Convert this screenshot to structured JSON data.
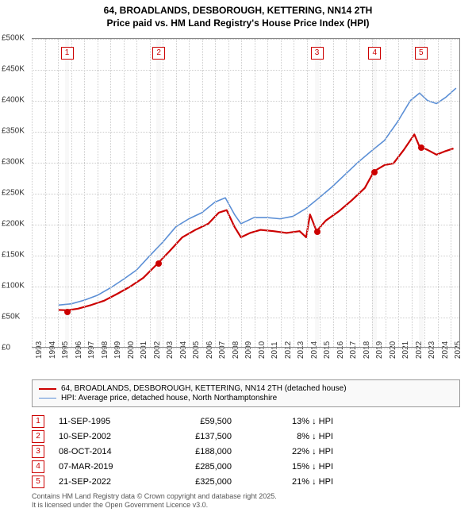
{
  "title_line1": "64, BROADLANDS, DESBOROUGH, KETTERING, NN14 2TH",
  "title_line2": "Price paid vs. HM Land Registry's House Price Index (HPI)",
  "chart": {
    "type": "line",
    "background_color": "#ffffff",
    "grid_color": "#cccccc",
    "xlim": [
      1993,
      2025.7
    ],
    "ylim": [
      0,
      500000
    ],
    "ytick_step": 50000,
    "yticks": [
      "£0",
      "£50K",
      "£100K",
      "£150K",
      "£200K",
      "£250K",
      "£300K",
      "£350K",
      "£400K",
      "£450K",
      "£500K"
    ],
    "xticks": [
      1993,
      1994,
      1995,
      1996,
      1997,
      1998,
      1999,
      2000,
      2001,
      2002,
      2003,
      2004,
      2005,
      2006,
      2007,
      2008,
      2009,
      2010,
      2011,
      2012,
      2013,
      2014,
      2015,
      2016,
      2017,
      2018,
      2019,
      2020,
      2021,
      2022,
      2023,
      2024,
      2025
    ],
    "series": [
      {
        "name": "paid",
        "label": "64, BROADLANDS, DESBOROUGH, KETTERING, NN14 2TH (detached house)",
        "color": "#cc0000",
        "line_width": 2.2,
        "data": [
          [
            1995.0,
            60000
          ],
          [
            1995.7,
            59500
          ],
          [
            1996.5,
            62000
          ],
          [
            1997.5,
            68000
          ],
          [
            1998.5,
            75000
          ],
          [
            1999.5,
            86000
          ],
          [
            2000.5,
            98000
          ],
          [
            2001.5,
            112000
          ],
          [
            2002.7,
            137500
          ],
          [
            2003.5,
            155000
          ],
          [
            2004.5,
            178000
          ],
          [
            2005.5,
            190000
          ],
          [
            2006.5,
            200000
          ],
          [
            2007.3,
            218000
          ],
          [
            2007.9,
            222000
          ],
          [
            2008.5,
            195000
          ],
          [
            2009.0,
            178000
          ],
          [
            2009.7,
            185000
          ],
          [
            2010.5,
            190000
          ],
          [
            2011.5,
            188000
          ],
          [
            2012.5,
            185000
          ],
          [
            2013.5,
            188000
          ],
          [
            2014.0,
            178000
          ],
          [
            2014.3,
            215000
          ],
          [
            2014.8,
            188000
          ],
          [
            2015.5,
            205000
          ],
          [
            2016.5,
            220000
          ],
          [
            2017.5,
            238000
          ],
          [
            2018.5,
            258000
          ],
          [
            2019.2,
            285000
          ],
          [
            2020.0,
            295000
          ],
          [
            2020.7,
            298000
          ],
          [
            2021.5,
            320000
          ],
          [
            2022.3,
            345000
          ],
          [
            2022.7,
            325000
          ],
          [
            2023.3,
            320000
          ],
          [
            2024.0,
            312000
          ],
          [
            2024.7,
            318000
          ],
          [
            2025.3,
            322000
          ]
        ]
      },
      {
        "name": "hpi",
        "label": "HPI: Average price, detached house, North Northamptonshire",
        "color": "#5b8fd6",
        "line_width": 1.6,
        "data": [
          [
            1995.0,
            68000
          ],
          [
            1996.0,
            70000
          ],
          [
            1997.0,
            76000
          ],
          [
            1998.0,
            84000
          ],
          [
            1999.0,
            96000
          ],
          [
            2000.0,
            110000
          ],
          [
            2001.0,
            125000
          ],
          [
            2002.0,
            148000
          ],
          [
            2003.0,
            170000
          ],
          [
            2004.0,
            195000
          ],
          [
            2005.0,
            208000
          ],
          [
            2006.0,
            218000
          ],
          [
            2007.0,
            235000
          ],
          [
            2007.8,
            242000
          ],
          [
            2008.5,
            215000
          ],
          [
            2009.0,
            200000
          ],
          [
            2010.0,
            210000
          ],
          [
            2011.0,
            210000
          ],
          [
            2012.0,
            208000
          ],
          [
            2013.0,
            212000
          ],
          [
            2014.0,
            225000
          ],
          [
            2015.0,
            242000
          ],
          [
            2016.0,
            260000
          ],
          [
            2017.0,
            280000
          ],
          [
            2018.0,
            300000
          ],
          [
            2019.0,
            318000
          ],
          [
            2020.0,
            335000
          ],
          [
            2021.0,
            365000
          ],
          [
            2022.0,
            400000
          ],
          [
            2022.7,
            412000
          ],
          [
            2023.3,
            400000
          ],
          [
            2024.0,
            395000
          ],
          [
            2024.7,
            405000
          ],
          [
            2025.5,
            420000
          ]
        ]
      }
    ],
    "sale_markers": [
      {
        "n": "1",
        "x": 1995.7,
        "y": 59500,
        "color": "#cc0000"
      },
      {
        "n": "2",
        "x": 2002.7,
        "y": 137500,
        "color": "#cc0000"
      },
      {
        "n": "3",
        "x": 2014.77,
        "y": 188000,
        "color": "#cc0000"
      },
      {
        "n": "4",
        "x": 2019.18,
        "y": 285000,
        "color": "#cc0000"
      },
      {
        "n": "5",
        "x": 2022.72,
        "y": 325000,
        "color": "#cc0000"
      }
    ],
    "marker_band_color": "rgba(200,200,200,0.12)",
    "marker_band_width_years": 0.35
  },
  "legend": {
    "border_color": "#999999",
    "bg_color": "#f9f9f9",
    "fontsize": 10
  },
  "sales_table": {
    "diff_suffix": " ↓ HPI",
    "rows": [
      {
        "n": "1",
        "date": "11-SEP-1995",
        "price": "£59,500",
        "diff": "13%",
        "color": "#cc0000"
      },
      {
        "n": "2",
        "date": "10-SEP-2002",
        "price": "£137,500",
        "diff": "8%",
        "color": "#cc0000"
      },
      {
        "n": "3",
        "date": "08-OCT-2014",
        "price": "£188,000",
        "diff": "22%",
        "color": "#cc0000"
      },
      {
        "n": "4",
        "date": "07-MAR-2019",
        "price": "£285,000",
        "diff": "15%",
        "color": "#cc0000"
      },
      {
        "n": "5",
        "date": "21-SEP-2022",
        "price": "£325,000",
        "diff": "21%",
        "color": "#cc0000"
      }
    ]
  },
  "footer_line1": "Contains HM Land Registry data © Crown copyright and database right 2025.",
  "footer_line2": "It is licensed under the Open Government Licence v3.0."
}
